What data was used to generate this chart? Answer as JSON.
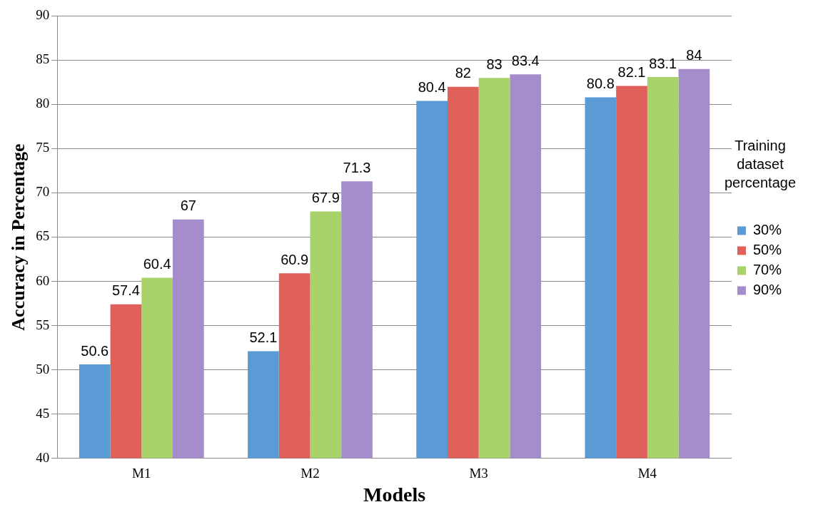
{
  "chart_data": {
    "type": "bar",
    "xlabel": "Models",
    "ylabel": "Accuracy in Percentage",
    "legend_title": "Training dataset percentage",
    "categories": [
      "M1",
      "M2",
      "M3",
      "M4"
    ],
    "series": [
      {
        "name": "30%",
        "color": "#5b9bd5",
        "values": [
          50.6,
          52.1,
          80.4,
          80.8
        ]
      },
      {
        "name": "50%",
        "color": "#e0605a",
        "values": [
          57.4,
          60.9,
          82,
          82.1
        ]
      },
      {
        "name": "70%",
        "color": "#a8d26a",
        "values": [
          60.4,
          67.9,
          83,
          83.1
        ]
      },
      {
        "name": "90%",
        "color": "#a58ccb",
        "values": [
          67,
          71.3,
          83.4,
          84
        ]
      }
    ],
    "ylim": [
      40,
      90
    ],
    "yticks": [
      40,
      45,
      50,
      55,
      60,
      65,
      70,
      75,
      80,
      85,
      90
    ],
    "grid": "y",
    "legend": "right",
    "data_labels": true
  }
}
